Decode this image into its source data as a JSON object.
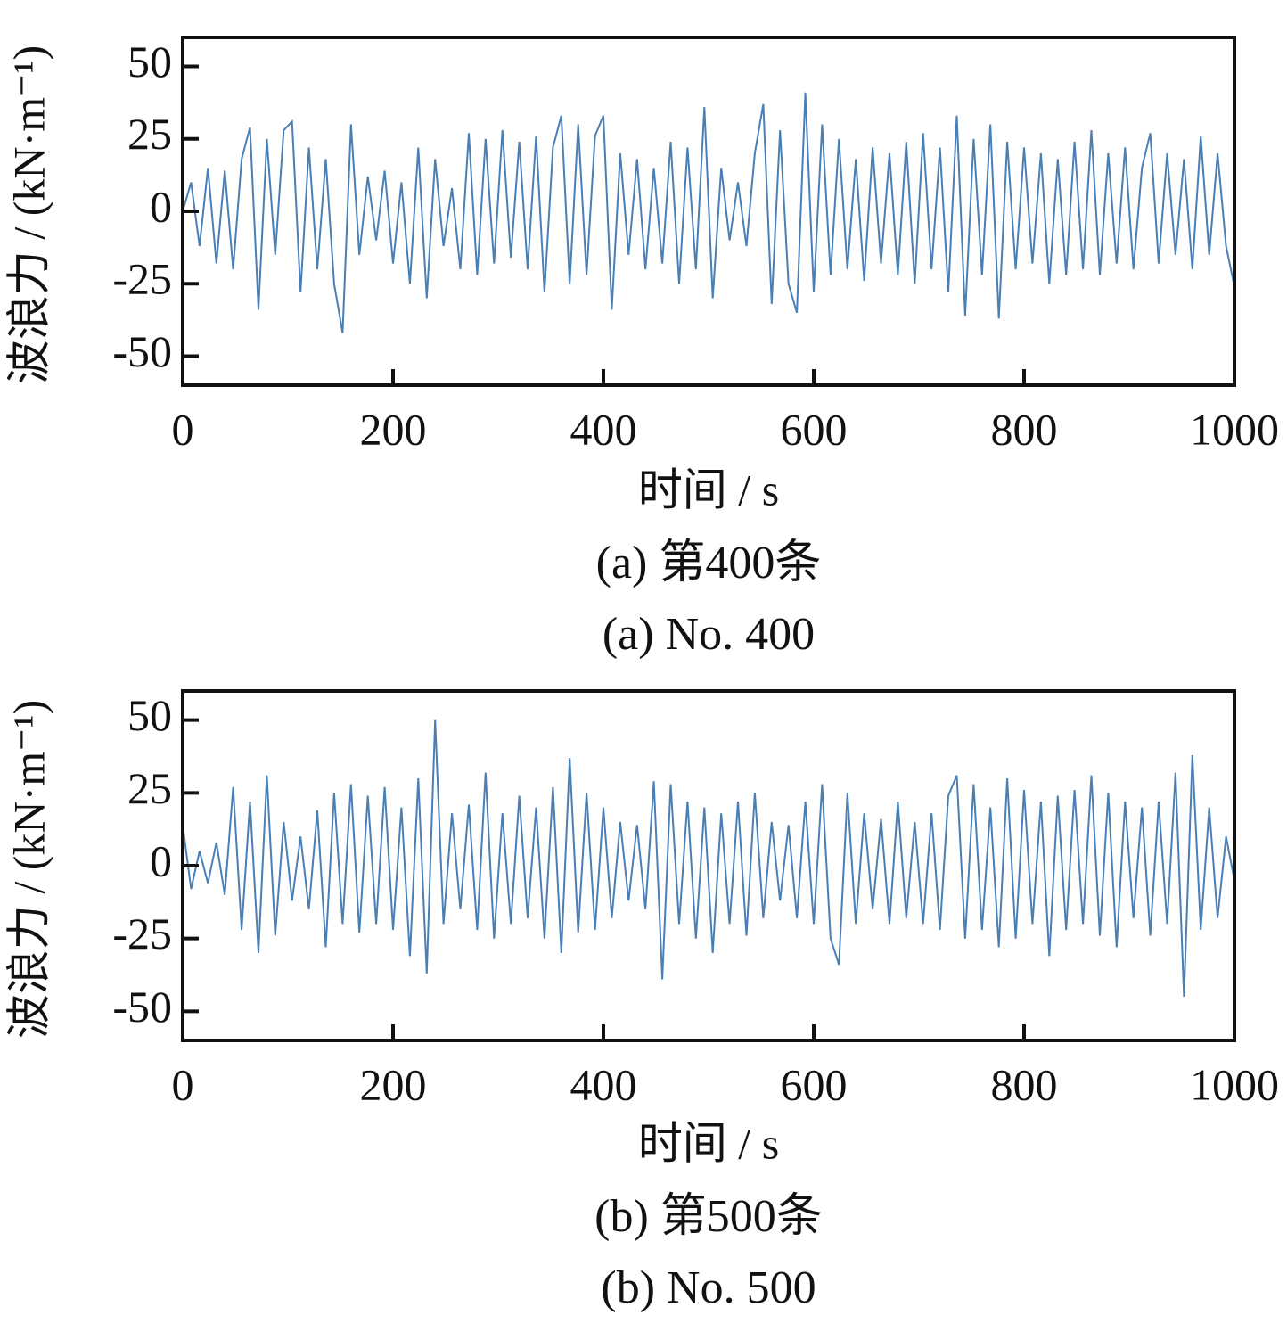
{
  "chart_data": [
    {
      "type": "line",
      "ylabel": "波浪力 / (kN·m⁻¹)",
      "xlabel": "时间 / s",
      "caption": "(a) 第400条",
      "caption_en": "(a) No. 400",
      "xlim": [
        0,
        1000
      ],
      "ylim": [
        -60,
        60
      ],
      "xticks": [
        0,
        200,
        400,
        600,
        800,
        1000
      ],
      "yticks": [
        -50,
        -25,
        0,
        25,
        50
      ],
      "grid": false,
      "series": [
        {
          "color": "#4a7fb5",
          "x": [
            0,
            8,
            16,
            24,
            32,
            40,
            48,
            56,
            64,
            72,
            80,
            88,
            96,
            104,
            112,
            120,
            128,
            136,
            144,
            152,
            160,
            168,
            176,
            184,
            192,
            200,
            208,
            216,
            224,
            232,
            240,
            248,
            256,
            264,
            272,
            280,
            288,
            296,
            304,
            312,
            320,
            328,
            336,
            344,
            352,
            360,
            368,
            376,
            384,
            392,
            400,
            408,
            416,
            424,
            432,
            440,
            448,
            456,
            464,
            472,
            480,
            488,
            496,
            504,
            512,
            520,
            528,
            536,
            544,
            552,
            560,
            568,
            576,
            584,
            592,
            600,
            608,
            616,
            624,
            632,
            640,
            648,
            656,
            664,
            672,
            680,
            688,
            696,
            704,
            712,
            720,
            728,
            736,
            744,
            752,
            760,
            768,
            776,
            784,
            792,
            800,
            808,
            816,
            824,
            832,
            840,
            848,
            856,
            864,
            872,
            880,
            888,
            896,
            904,
            912,
            920,
            928,
            936,
            944,
            952,
            960,
            968,
            976,
            984,
            992,
            1000
          ],
          "values": [
            0,
            10,
            -12,
            15,
            -18,
            14,
            -20,
            18,
            29,
            -34,
            25,
            -15,
            28,
            31,
            -28,
            22,
            -20,
            18,
            -25,
            -42,
            30,
            -15,
            12,
            -10,
            14,
            -18,
            10,
            -25,
            22,
            -30,
            18,
            -12,
            8,
            -20,
            27,
            -22,
            25,
            -18,
            28,
            -16,
            24,
            -20,
            26,
            -28,
            22,
            33,
            -25,
            30,
            -22,
            26,
            33,
            -34,
            20,
            -15,
            18,
            -20,
            15,
            -18,
            24,
            -25,
            22,
            -20,
            36,
            -30,
            15,
            -10,
            10,
            -12,
            20,
            37,
            -32,
            28,
            -25,
            -35,
            41,
            -28,
            30,
            -22,
            25,
            -20,
            18,
            -24,
            22,
            -18,
            20,
            -22,
            24,
            -25,
            27,
            -20,
            22,
            -28,
            33,
            -36,
            25,
            -22,
            30,
            -37,
            24,
            -20,
            22,
            -18,
            20,
            -25,
            18,
            -22,
            24,
            -20,
            28,
            -22,
            20,
            -18,
            22,
            -20,
            15,
            27,
            -18,
            20,
            -15,
            18,
            -20,
            26,
            -15,
            20,
            -12,
            -26
          ]
        }
      ]
    },
    {
      "type": "line",
      "ylabel": "波浪力 / (kN·m⁻¹)",
      "xlabel": "时间 / s",
      "caption": "(b) 第500条",
      "caption_en": "(b) No. 500",
      "xlim": [
        0,
        1000
      ],
      "ylim": [
        -60,
        60
      ],
      "xticks": [
        0,
        200,
        400,
        600,
        800,
        1000
      ],
      "yticks": [
        -50,
        -25,
        0,
        25,
        50
      ],
      "grid": false,
      "series": [
        {
          "color": "#4a7fb5",
          "x": [
            0,
            8,
            16,
            24,
            32,
            40,
            48,
            56,
            64,
            72,
            80,
            88,
            96,
            104,
            112,
            120,
            128,
            136,
            144,
            152,
            160,
            168,
            176,
            184,
            192,
            200,
            208,
            216,
            224,
            232,
            240,
            248,
            256,
            264,
            272,
            280,
            288,
            296,
            304,
            312,
            320,
            328,
            336,
            344,
            352,
            360,
            368,
            376,
            384,
            392,
            400,
            408,
            416,
            424,
            432,
            440,
            448,
            456,
            464,
            472,
            480,
            488,
            496,
            504,
            512,
            520,
            528,
            536,
            544,
            552,
            560,
            568,
            576,
            584,
            592,
            600,
            608,
            616,
            624,
            632,
            640,
            648,
            656,
            664,
            672,
            680,
            688,
            696,
            704,
            712,
            720,
            728,
            736,
            744,
            752,
            760,
            768,
            776,
            784,
            792,
            800,
            808,
            816,
            824,
            832,
            840,
            848,
            856,
            864,
            872,
            880,
            888,
            896,
            904,
            912,
            920,
            928,
            936,
            944,
            952,
            960,
            968,
            976,
            984,
            992,
            1000
          ],
          "values": [
            14,
            -8,
            5,
            -6,
            8,
            -10,
            27,
            -22,
            22,
            -30,
            31,
            -24,
            15,
            -12,
            10,
            -15,
            19,
            -28,
            25,
            -20,
            28,
            -23,
            24,
            -20,
            27,
            -22,
            20,
            -31,
            30,
            -37,
            50,
            -20,
            18,
            -15,
            21,
            -22,
            32,
            -25,
            18,
            -20,
            24,
            -18,
            20,
            -25,
            27,
            -30,
            37,
            -23,
            25,
            -22,
            20,
            -18,
            15,
            -12,
            14,
            -15,
            29,
            -39,
            28,
            -20,
            22,
            -25,
            20,
            -30,
            18,
            -20,
            22,
            -24,
            25,
            -18,
            15,
            -12,
            14,
            -18,
            22,
            -20,
            28,
            -25,
            -34,
            25,
            -20,
            18,
            -15,
            16,
            -20,
            22,
            -18,
            15,
            -20,
            18,
            -22,
            24,
            31,
            -25,
            28,
            -22,
            20,
            -28,
            30,
            -25,
            26,
            -20,
            22,
            -31,
            24,
            -22,
            26,
            -20,
            31,
            -24,
            25,
            -28,
            22,
            -18,
            20,
            -24,
            22,
            -20,
            32,
            -45,
            38,
            -22,
            20,
            -18,
            10,
            -5
          ]
        }
      ]
    }
  ]
}
